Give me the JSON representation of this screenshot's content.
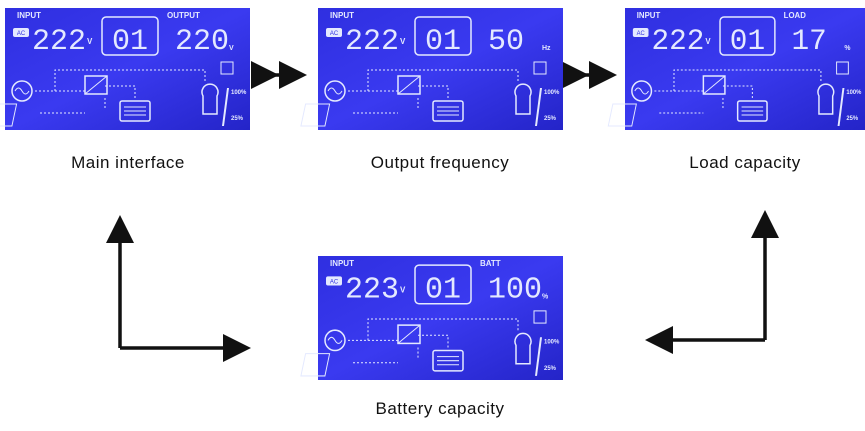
{
  "screens": [
    {
      "caption": "Main interface",
      "input_label": "INPUT",
      "source": "AC",
      "input_value": "222",
      "input_unit": "V",
      "program": "01",
      "right_label": "OUTPUT",
      "right_value": "220",
      "right_unit": "V",
      "scale_high": "100%",
      "scale_low": "25%"
    },
    {
      "caption": "Output frequency",
      "input_label": "INPUT",
      "source": "AC",
      "input_value": "222",
      "input_unit": "V",
      "program": "01",
      "right_value": "50",
      "right_unit": "Hz",
      "scale_high": "100%",
      "scale_low": "25%"
    },
    {
      "caption": "Load capacity",
      "input_label": "INPUT",
      "source": "AC",
      "input_value": "222",
      "input_unit": "V",
      "program": "01",
      "right_label": "LOAD",
      "right_value": "17",
      "right_unit": "%",
      "scale_high": "100%",
      "scale_low": "25%"
    },
    {
      "caption": "Battery capacity",
      "input_label": "INPUT",
      "source": "AC",
      "input_value": "223",
      "input_unit": "V",
      "program": "01",
      "right_label": "BATT",
      "right_value": "100",
      "right_unit": "%",
      "scale_high": "100%",
      "scale_low": "25%"
    }
  ]
}
